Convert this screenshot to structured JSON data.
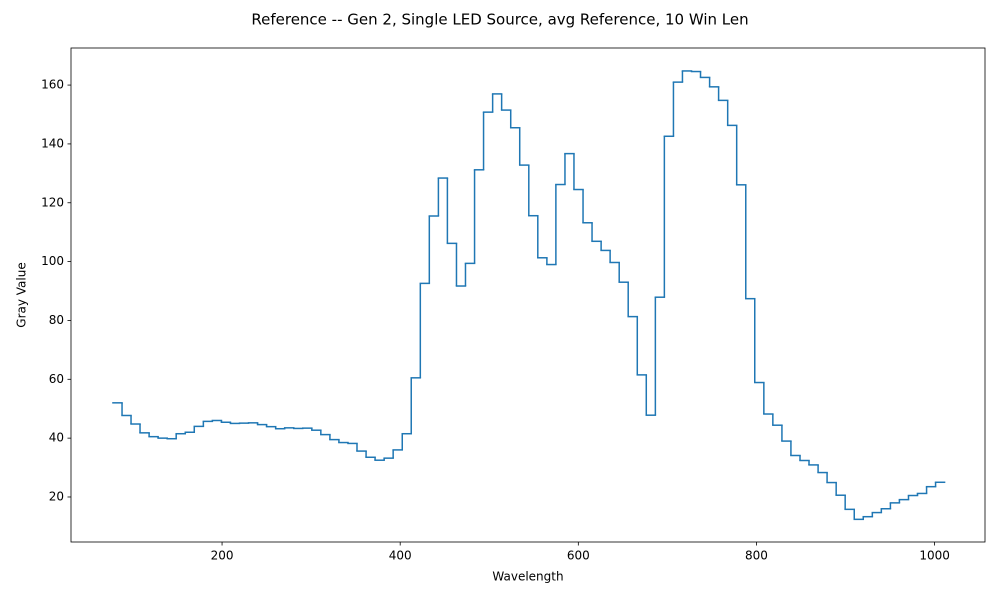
{
  "chart_data": {
    "type": "step",
    "title": "Reference -- Gen 2, Single LED Source, avg Reference, 10 Win Len",
    "x_label": "Wavelength",
    "y_label": "Gray Value",
    "x": [
      77.5,
      87.7,
      97.8,
      107.9,
      118.1,
      128.2,
      138.4,
      148.5,
      158.7,
      168.8,
      179.0,
      189.1,
      199.3,
      209.4,
      219.6,
      229.7,
      239.9,
      250.0,
      260.2,
      270.3,
      280.5,
      290.6,
      300.8,
      310.9,
      321.1,
      331.2,
      341.4,
      351.5,
      361.7,
      371.8,
      382.0,
      392.1,
      402.3,
      412.4,
      422.6,
      432.7,
      442.9,
      453.0,
      463.2,
      473.3,
      483.5,
      493.6,
      503.8,
      513.9,
      524.1,
      534.2,
      544.4,
      554.5,
      564.7,
      574.8,
      585.0,
      595.1,
      605.3,
      615.4,
      625.6,
      635.7,
      645.9,
      656.0,
      666.2,
      676.3,
      686.5,
      696.6,
      706.8,
      716.9,
      727.1,
      737.2,
      747.4,
      757.5,
      767.7,
      777.8,
      788.0,
      798.1,
      808.3,
      818.4,
      828.6,
      838.7,
      848.9,
      859.0,
      869.2,
      879.3,
      889.5,
      899.6,
      909.8,
      919.9,
      930.1,
      940.2,
      950.4,
      960.5,
      970.7,
      980.8,
      991.0,
      1001.1
    ],
    "values": [
      52,
      47.7,
      44.8,
      41.8,
      40.5,
      40.0,
      39.8,
      41.5,
      42,
      44,
      45.7,
      46,
      45.4,
      45,
      45.1,
      45.2,
      44.6,
      43.9,
      43.2,
      43.5,
      43.3,
      43.4,
      42.7,
      41.2,
      39.5,
      38.5,
      38.2,
      35.6,
      33.5,
      32.5,
      33.2,
      36,
      41.5,
      60.5,
      92.6,
      115.5,
      128.4,
      106.2,
      91.7,
      99.4,
      131.2,
      150.8,
      157,
      151.5,
      145.5,
      132.8,
      115.6,
      101.3,
      99,
      126.2,
      136.7,
      124.5,
      113.2,
      106.9,
      103.8,
      99.7,
      93,
      81.3,
      61.5,
      47.8,
      87.9,
      142.6,
      161,
      164.8,
      164.6,
      162.6,
      159.4,
      154.8,
      146.3,
      126.1,
      87.4,
      58.9,
      48.2,
      44.4,
      39,
      34.1,
      32.4,
      30.9,
      28.3,
      24.9,
      20.6,
      15.8,
      12.4,
      13.3,
      14.7,
      16,
      18,
      19.1,
      20.5,
      21.2,
      23.5,
      25
    ],
    "color": "#1f77b4",
    "xlim": [
      30.4,
      1056.6
    ],
    "ylim": [
      4.7,
      172.6
    ],
    "xticks": [
      200,
      400,
      600,
      800,
      1000
    ],
    "yticks": [
      20,
      40,
      60,
      80,
      100,
      120,
      140,
      160
    ]
  }
}
